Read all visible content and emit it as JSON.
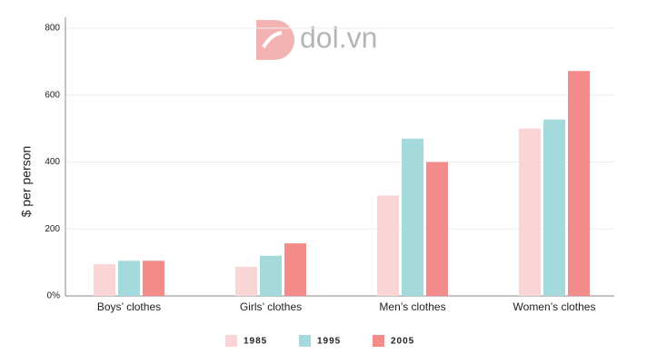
{
  "chart_data": {
    "type": "bar",
    "watermark": "dol.vn",
    "y_label": "$ per person",
    "categories": [
      "Boys’ clothes",
      "Girls’ clothes",
      "Men’s clothes",
      "Women’s clothes"
    ],
    "series": [
      {
        "name": "1985",
        "color": "#f9d6d5",
        "values": [
          95,
          87,
          300,
          500
        ]
      },
      {
        "name": "1995",
        "color": "#a4dadc",
        "values": [
          105,
          120,
          470,
          527
        ]
      },
      {
        "name": "2005",
        "color": "#f28b8a",
        "values": [
          105,
          157,
          400,
          672
        ]
      }
    ],
    "ylim": [
      0,
      800
    ],
    "yticks": [
      {
        "value": 0,
        "label": "0%"
      },
      200,
      400,
      600,
      800
    ],
    "grid": true
  }
}
